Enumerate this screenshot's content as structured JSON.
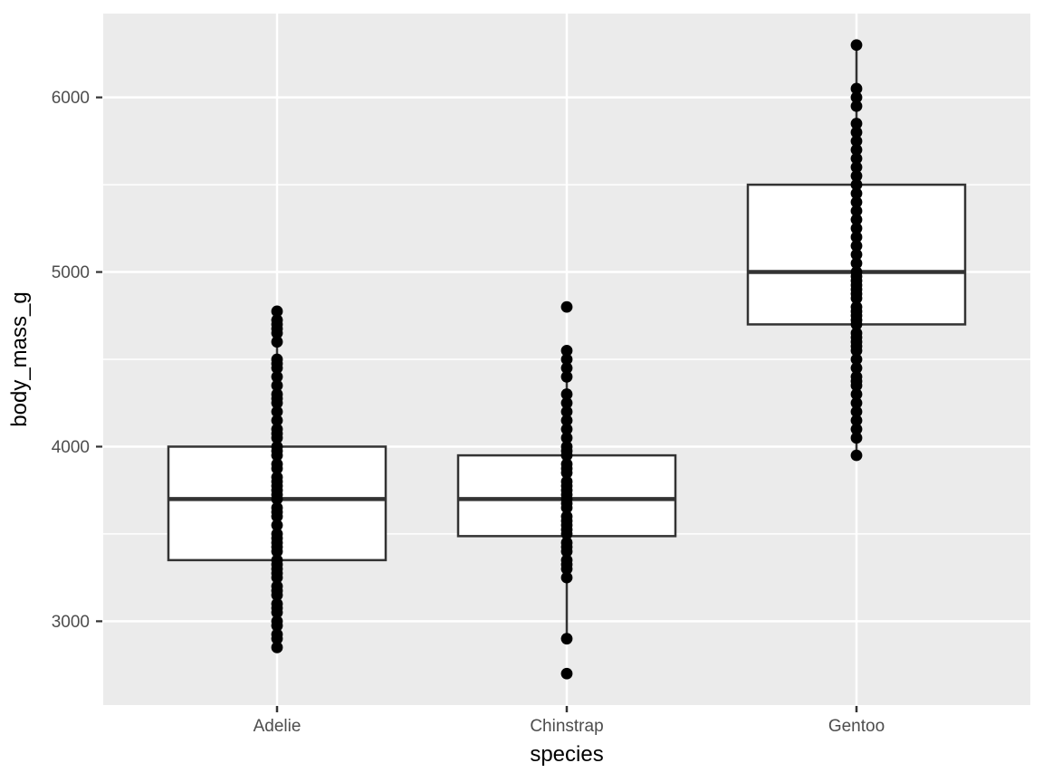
{
  "chart_data": {
    "type": "boxplot",
    "title": "",
    "xlabel": "species",
    "ylabel": "body_mass_g",
    "categories": [
      "Adelie",
      "Chinstrap",
      "Gentoo"
    ],
    "ylim": [
      2520,
      6480
    ],
    "y_major_breaks": [
      3000,
      4000,
      5000,
      6000
    ],
    "y_minor_breaks": [
      3500,
      4500,
      5500
    ],
    "y_tick_labels": [
      "3000",
      "4000",
      "5000",
      "6000"
    ],
    "grid": "white major+minor on grey panel",
    "legend_position": "none",
    "series": [
      {
        "name": "Adelie",
        "q1": 3350,
        "median": 3700,
        "q3": 4000,
        "whisker_low": 2850,
        "whisker_high": 4775,
        "outliers": [],
        "points": [
          2850,
          2900,
          2925,
          2975,
          3000,
          3050,
          3075,
          3100,
          3150,
          3175,
          3200,
          3250,
          3275,
          3300,
          3325,
          3350,
          3400,
          3425,
          3450,
          3475,
          3500,
          3550,
          3600,
          3625,
          3650,
          3700,
          3725,
          3750,
          3775,
          3800,
          3825,
          3875,
          3900,
          3950,
          3975,
          4000,
          4050,
          4075,
          4100,
          4150,
          4200,
          4250,
          4275,
          4300,
          4350,
          4400,
          4450,
          4475,
          4500,
          4600,
          4650,
          4675,
          4700,
          4725,
          4775
        ]
      },
      {
        "name": "Chinstrap",
        "q1": 3487.5,
        "median": 3700,
        "q3": 3950,
        "whisker_low": 2900,
        "whisker_high": 4550,
        "outliers": [
          2700,
          4800
        ],
        "points": [
          2700,
          2900,
          3250,
          3300,
          3325,
          3350,
          3400,
          3425,
          3450,
          3500,
          3525,
          3550,
          3575,
          3600,
          3650,
          3675,
          3700,
          3725,
          3750,
          3775,
          3800,
          3850,
          3875,
          3900,
          3950,
          3975,
          4000,
          4050,
          4100,
          4150,
          4200,
          4250,
          4300,
          4400,
          4450,
          4500,
          4550,
          4800
        ]
      },
      {
        "name": "Gentoo",
        "q1": 4700,
        "median": 5000,
        "q3": 5500,
        "whisker_low": 3950,
        "whisker_high": 6300,
        "outliers": [],
        "points": [
          3950,
          4050,
          4100,
          4150,
          4200,
          4250,
          4300,
          4350,
          4375,
          4400,
          4450,
          4500,
          4550,
          4575,
          4600,
          4625,
          4650,
          4700,
          4725,
          4750,
          4775,
          4800,
          4850,
          4875,
          4900,
          4925,
          4950,
          4975,
          5000,
          5050,
          5100,
          5150,
          5200,
          5250,
          5300,
          5350,
          5400,
          5450,
          5500,
          5550,
          5600,
          5650,
          5700,
          5750,
          5800,
          5850,
          5950,
          6000,
          6050,
          6300
        ]
      }
    ],
    "style": {
      "background": "#FFFFFF",
      "panel_bg": "#EBEBEB",
      "grid_color": "#FFFFFF",
      "box_fill": "#FFFFFF",
      "box_border": "#333333",
      "point_color": "#000000",
      "tick_mark_color": "#333333",
      "tick_label_color": "#4D4D4D",
      "axis_title_color": "#000000"
    }
  }
}
